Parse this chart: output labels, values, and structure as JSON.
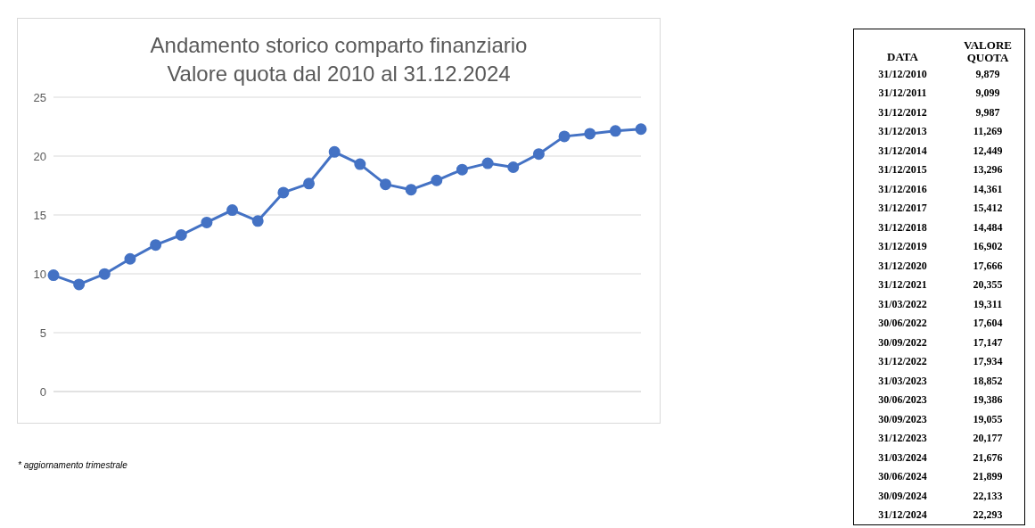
{
  "chart_data": [
    {
      "type": "line",
      "title": "Andamento storico comparto finanziario\nValore quota dal 2010 al 31.12.2024",
      "categories": [
        null,
        null,
        null,
        null,
        null,
        null,
        null,
        null,
        null,
        null,
        null,
        null,
        null,
        null,
        null,
        null,
        null,
        null,
        null,
        null,
        null,
        null,
        null,
        null
      ],
      "values": [
        9.879,
        9.099,
        9.987,
        11.269,
        12.449,
        13.296,
        14.361,
        15.412,
        14.484,
        16.902,
        17.666,
        20.355,
        19.311,
        17.604,
        17.147,
        17.934,
        18.852,
        19.386,
        19.055,
        20.177,
        21.676,
        21.899,
        22.133,
        22.293
      ],
      "color": "#4472c4",
      "marker": "circle",
      "line_style": "solid",
      "ylim": [
        0,
        25
      ],
      "yticks": [
        0,
        5,
        10,
        15,
        20,
        25
      ],
      "grid": "y",
      "tick_labels": "y",
      "annotations": [
        "* aggiornamento trimestrale"
      ]
    },
    {
      "type": "other",
      "annotations": [
        "DATA",
        "VALORE QUOTA",
        "31/12/2010",
        "9,879",
        "31/12/2011",
        "9,099",
        "31/12/2012",
        "9,987",
        "31/12/2013",
        "11,269",
        "31/12/2014",
        "12,449",
        "31/12/2015",
        "13,296",
        "31/12/2016",
        "14,361",
        "31/12/2017",
        "15,412",
        "31/12/2018",
        "14,484",
        "31/12/2019",
        "16,902",
        "31/12/2020",
        "17,666",
        "31/12/2021",
        "20,355",
        "31/03/2022",
        "19,311",
        "30/06/2022",
        "17,604",
        "30/09/2022",
        "17,147",
        "31/12/2022",
        "17,934",
        "31/03/2023",
        "18,852",
        "30/06/2023",
        "19,386",
        "30/09/2023",
        "19,055",
        "31/12/2023",
        "20,177",
        "31/03/2024",
        "21,676",
        "30/06/2024",
        "21,899",
        "30/09/2024",
        "22,133",
        "31/12/2024",
        "22,293"
      ]
    }
  ]
}
